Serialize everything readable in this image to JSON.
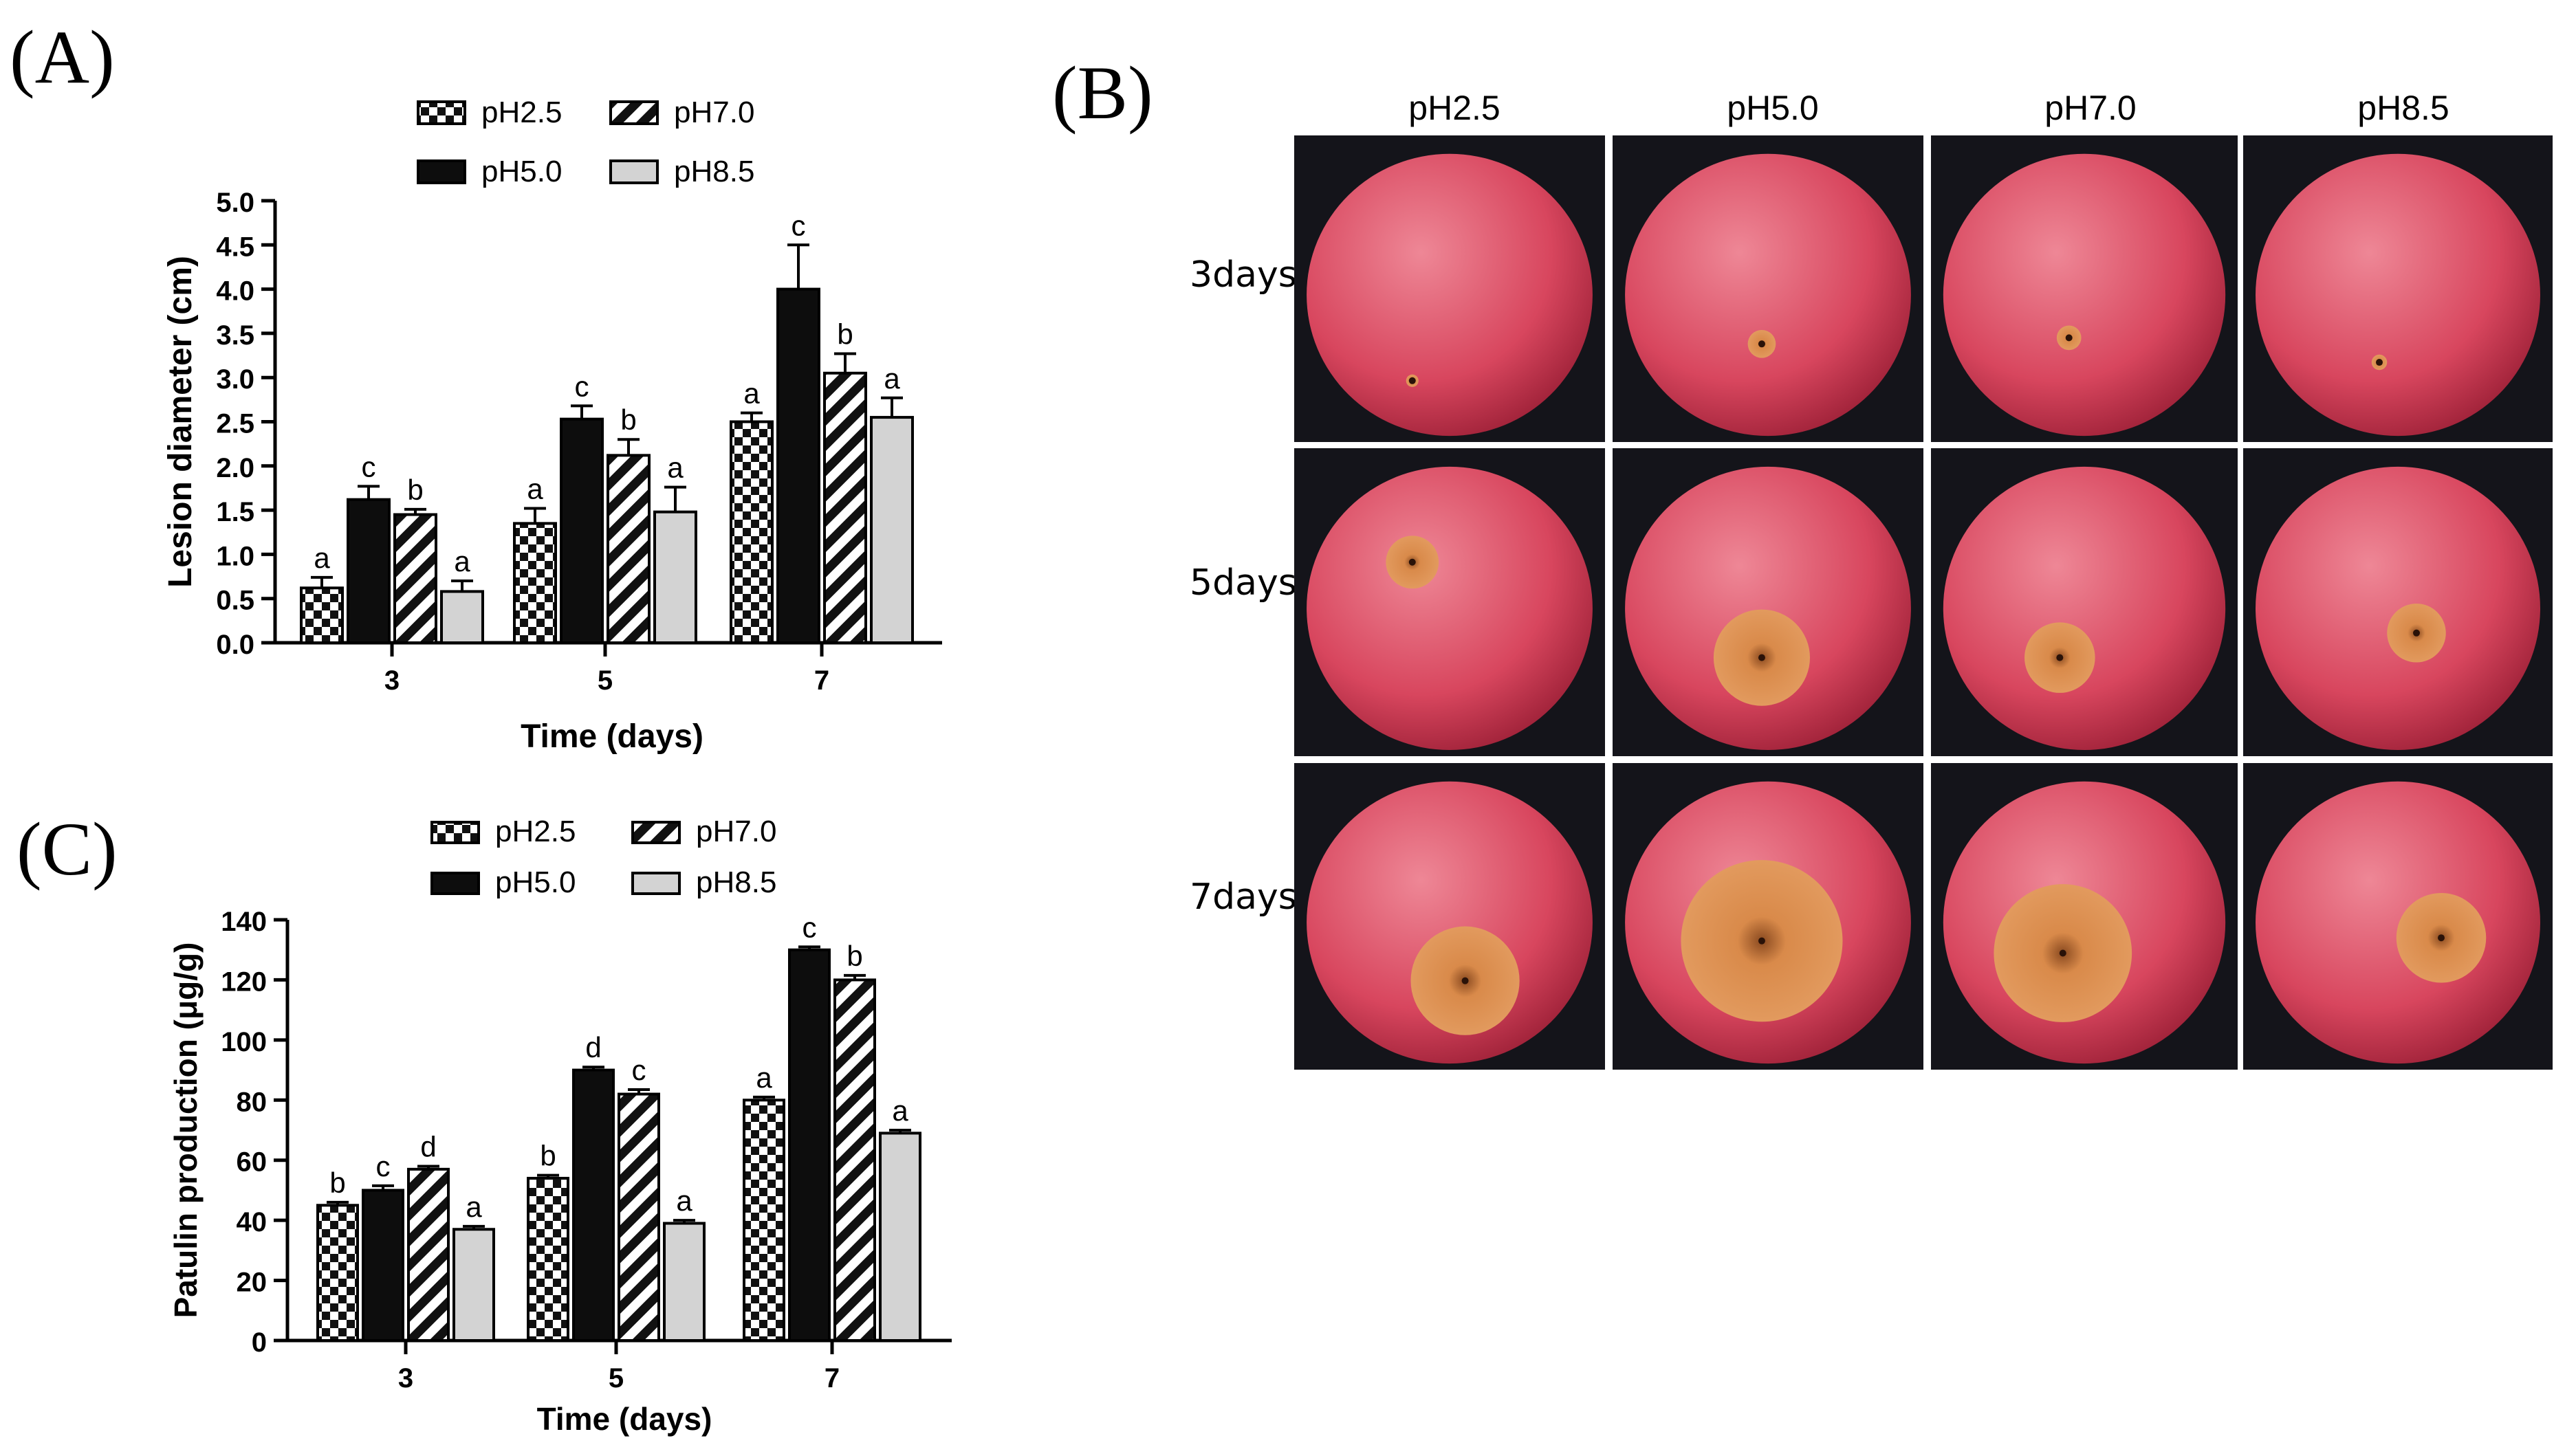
{
  "panels": {
    "a_letter": "(A)",
    "b_letter": "(B)",
    "c_letter": "(C)"
  },
  "chart_data": [
    {
      "id": "A",
      "type": "bar",
      "title": "",
      "xlabel": "Time (days)",
      "ylabel": "Lesion diameter (cm)",
      "categories": [
        "3",
        "5",
        "7"
      ],
      "ylim": [
        0,
        5.0
      ],
      "yticks": [
        "0.0",
        "0.5",
        "1.0",
        "1.5",
        "2.0",
        "2.5",
        "3.0",
        "3.5",
        "4.0",
        "4.5",
        "5.0"
      ],
      "yticks_values": [
        0,
        0.5,
        1.0,
        1.5,
        2.0,
        2.5,
        3.0,
        3.5,
        4.0,
        4.5,
        5.0
      ],
      "legend_position": "top",
      "series": [
        {
          "name": "pH2.5",
          "pattern": "checker",
          "values": [
            0.62,
            1.35,
            2.5
          ],
          "errors": [
            0.12,
            0.17,
            0.1
          ],
          "letters": [
            "a",
            "a",
            "a"
          ]
        },
        {
          "name": "pH5.0",
          "pattern": "solid",
          "values": [
            1.62,
            2.53,
            4.0
          ],
          "errors": [
            0.15,
            0.15,
            0.5
          ],
          "letters": [
            "c",
            "c",
            "c"
          ]
        },
        {
          "name": "pH7.0",
          "pattern": "diagonal",
          "values": [
            1.45,
            2.12,
            3.05
          ],
          "errors": [
            0.06,
            0.18,
            0.22
          ],
          "letters": [
            "b",
            "b",
            "b"
          ]
        },
        {
          "name": "pH8.5",
          "pattern": "gray",
          "values": [
            0.58,
            1.48,
            2.55
          ],
          "errors": [
            0.12,
            0.28,
            0.22
          ],
          "letters": [
            "a",
            "a",
            "a"
          ]
        }
      ]
    },
    {
      "id": "C",
      "type": "bar",
      "title": "",
      "xlabel": "Time (days)",
      "ylabel": "Patulin production (μg/g)",
      "categories": [
        "3",
        "5",
        "7"
      ],
      "ylim": [
        0,
        140
      ],
      "yticks": [
        "0",
        "20",
        "40",
        "60",
        "80",
        "100",
        "120",
        "140"
      ],
      "yticks_values": [
        0,
        20,
        40,
        60,
        80,
        100,
        120,
        140
      ],
      "legend_position": "top",
      "series": [
        {
          "name": "pH2.5",
          "pattern": "checker",
          "values": [
            45,
            54,
            80
          ],
          "errors": [
            1.0,
            1.0,
            1.0
          ],
          "letters": [
            "b",
            "b",
            "a"
          ]
        },
        {
          "name": "pH5.0",
          "pattern": "solid",
          "values": [
            50,
            90,
            130
          ],
          "errors": [
            1.5,
            1.0,
            1.0
          ],
          "letters": [
            "c",
            "d",
            "c"
          ]
        },
        {
          "name": "pH7.0",
          "pattern": "diagonal",
          "values": [
            57,
            82,
            120
          ],
          "errors": [
            1.0,
            1.5,
            1.5
          ],
          "letters": [
            "d",
            "c",
            "b"
          ]
        },
        {
          "name": "pH8.5",
          "pattern": "gray",
          "values": [
            37,
            39,
            69
          ],
          "errors": [
            1.0,
            1.0,
            1.0
          ],
          "letters": [
            "a",
            "a",
            "a"
          ]
        }
      ]
    }
  ],
  "photo_grid": {
    "columns": [
      "pH2.5",
      "pH5.0",
      "pH7.0",
      "pH8.5"
    ],
    "rows": [
      "3days",
      "5days",
      "7days"
    ],
    "lesion_scale": [
      [
        0.04,
        0.09,
        0.08,
        0.05
      ],
      [
        0.17,
        0.31,
        0.23,
        0.19
      ],
      [
        0.35,
        0.52,
        0.45,
        0.29
      ]
    ],
    "colors": {
      "apple": "#d8465e",
      "apple_light": "#ee8796",
      "lesion": "#d98a4a",
      "background": "#14141a"
    }
  }
}
